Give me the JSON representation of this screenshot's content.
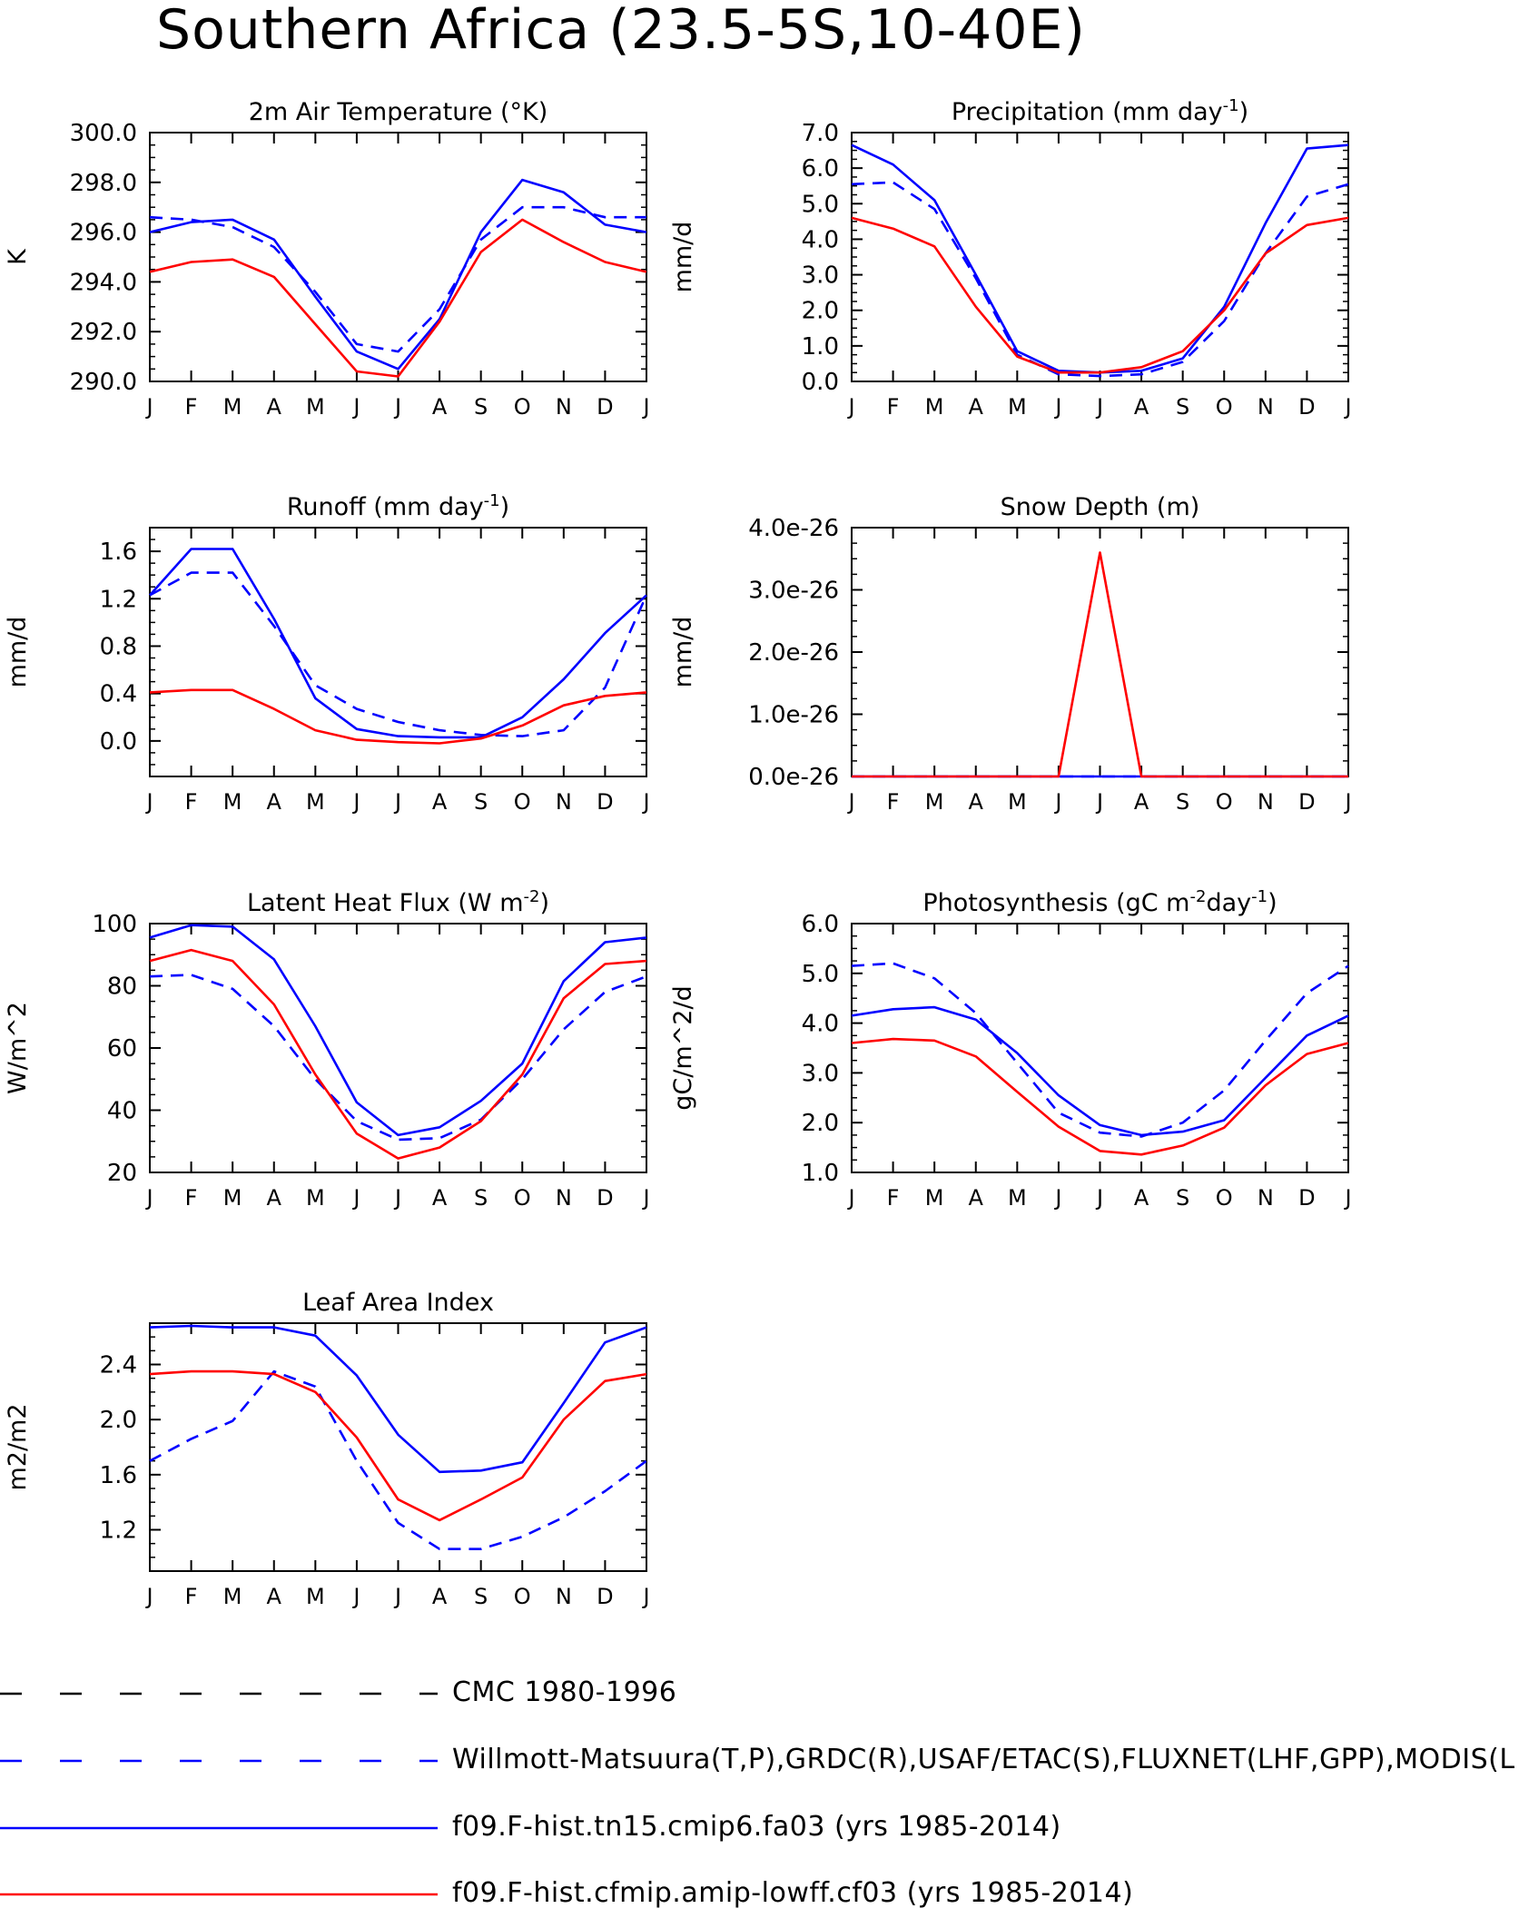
{
  "page": {
    "title": "Southern Africa (23.5-5S,10-40E)"
  },
  "colors": {
    "obs_cmc": "#000000",
    "obs_primary": "#0000ff",
    "model_fa03": "#0000ff",
    "model_cf03": "#ff0000"
  },
  "legend": [
    {
      "label": "CMC 1980-1996",
      "color": "#000000",
      "style": "dashed"
    },
    {
      "label": "Willmott-Matsuura(T,P),GRDC(R),USAF/ETAC(S),FLUXNET(LHF,GPP),MODIS(L",
      "color": "#0000ff",
      "style": "dashed"
    },
    {
      "label": "f09.F-hist.tn15.cmip6.fa03 (yrs 1985-2014)",
      "color": "#0000ff",
      "style": "solid"
    },
    {
      "label": "f09.F-hist.cfmip.amip-lowff.cf03 (yrs 1985-2014)",
      "color": "#ff0000",
      "style": "solid"
    }
  ],
  "chart_data": [
    {
      "type": "line",
      "title": "2m Air Temperature (°K)",
      "ylabel": "K",
      "categories": [
        "J",
        "F",
        "M",
        "A",
        "M",
        "J",
        "J",
        "A",
        "S",
        "O",
        "N",
        "D",
        "J"
      ],
      "ylim": [
        290,
        300
      ],
      "yticks": [
        "290.0",
        "292.0",
        "294.0",
        "296.0",
        "298.0",
        "300.0"
      ],
      "ytick_values": [
        290,
        292,
        294,
        296,
        298,
        300
      ],
      "series": [
        {
          "name": "Willmott-Matsuura(T,P),GRDC(R),USAF/ETAC(S),FLUXNET(LHF,GPP),MODIS(L",
          "color": "#0000ff",
          "style": "dashed",
          "values": [
            296.6,
            296.5,
            296.2,
            295.4,
            293.6,
            291.5,
            291.2,
            292.9,
            295.7,
            297.0,
            297.0,
            296.6,
            296.6
          ]
        },
        {
          "name": "f09.F-hist.tn15.cmip6.fa03 (yrs 1985-2014)",
          "color": "#0000ff",
          "style": "solid",
          "values": [
            296.0,
            296.4,
            296.5,
            295.7,
            293.4,
            291.2,
            290.5,
            292.5,
            296.0,
            298.1,
            297.6,
            296.3,
            296.0
          ]
        },
        {
          "name": "f09.F-hist.cfmip.amip-lowff.cf03 (yrs 1985-2014)",
          "color": "#ff0000",
          "style": "solid",
          "values": [
            294.4,
            294.8,
            294.9,
            294.2,
            292.3,
            290.4,
            290.2,
            292.4,
            295.2,
            296.5,
            295.6,
            294.8,
            294.4
          ]
        }
      ]
    },
    {
      "type": "line",
      "title": "Precipitation (mm day",
      "title_sup": "-1",
      "title_end": ")",
      "ylabel": "mm/d",
      "categories": [
        "J",
        "F",
        "M",
        "A",
        "M",
        "J",
        "J",
        "A",
        "S",
        "O",
        "N",
        "D",
        "J"
      ],
      "ylim": [
        0,
        7
      ],
      "yticks": [
        "0.0",
        "1.0",
        "2.0",
        "3.0",
        "4.0",
        "5.0",
        "6.0",
        "7.0"
      ],
      "ytick_values": [
        0,
        1,
        2,
        3,
        4,
        5,
        6,
        7
      ],
      "series": [
        {
          "name": "Willmott-Matsuura(T,P),GRDC(R),USAF/ETAC(S),FLUXNET(LHF,GPP),MODIS(L",
          "color": "#0000ff",
          "style": "dashed",
          "values": [
            5.55,
            5.6,
            4.85,
            2.9,
            0.75,
            0.2,
            0.15,
            0.2,
            0.55,
            1.7,
            3.6,
            5.2,
            5.55
          ]
        },
        {
          "name": "f09.F-hist.tn15.cmip6.fa03 (yrs 1985-2014)",
          "color": "#0000ff",
          "style": "solid",
          "values": [
            6.65,
            6.1,
            5.1,
            3.0,
            0.85,
            0.3,
            0.25,
            0.3,
            0.65,
            2.1,
            4.45,
            6.55,
            6.65
          ]
        },
        {
          "name": "f09.F-hist.cfmip.amip-lowff.cf03 (yrs 1985-2014)",
          "color": "#ff0000",
          "style": "solid",
          "values": [
            4.6,
            4.3,
            3.8,
            2.1,
            0.7,
            0.25,
            0.25,
            0.4,
            0.85,
            2.0,
            3.6,
            4.4,
            4.6
          ]
        }
      ]
    },
    {
      "type": "line",
      "title": "Runoff (mm day",
      "title_sup": "-1",
      "title_end": ")",
      "ylabel": "mm/d",
      "categories": [
        "J",
        "F",
        "M",
        "A",
        "M",
        "J",
        "J",
        "A",
        "S",
        "O",
        "N",
        "D",
        "J"
      ],
      "ylim": [
        -0.3,
        1.8
      ],
      "yticks": [
        "0.0",
        "0.4",
        "0.8",
        "1.2",
        "1.6"
      ],
      "ytick_values": [
        0,
        0.4,
        0.8,
        1.2,
        1.6
      ],
      "series": [
        {
          "name": "Willmott-Matsuura(T,P),GRDC(R),USAF/ETAC(S),FLUXNET(LHF,GPP),MODIS(L",
          "color": "#0000ff",
          "style": "dashed",
          "values": [
            1.23,
            1.42,
            1.42,
            0.97,
            0.47,
            0.27,
            0.16,
            0.09,
            0.05,
            0.04,
            0.09,
            0.45,
            1.23
          ]
        },
        {
          "name": "f09.F-hist.tn15.cmip6.fa03 (yrs 1985-2014)",
          "color": "#0000ff",
          "style": "solid",
          "values": [
            1.23,
            1.62,
            1.62,
            1.03,
            0.36,
            0.1,
            0.04,
            0.03,
            0.03,
            0.2,
            0.52,
            0.91,
            1.23
          ]
        },
        {
          "name": "f09.F-hist.cfmip.amip-lowff.cf03 (yrs 1985-2014)",
          "color": "#ff0000",
          "style": "solid",
          "values": [
            0.41,
            0.43,
            0.43,
            0.27,
            0.09,
            0.01,
            -0.01,
            -0.02,
            0.02,
            0.13,
            0.3,
            0.38,
            0.41
          ]
        }
      ]
    },
    {
      "type": "line",
      "title": "Snow Depth (m)",
      "ylabel": "mm/d",
      "categories": [
        "J",
        "F",
        "M",
        "A",
        "M",
        "J",
        "J",
        "A",
        "S",
        "O",
        "N",
        "D",
        "J"
      ],
      "ylim": [
        0,
        4e-26
      ],
      "yticks": [
        "0.0e-26",
        "1.0e-26",
        "2.0e-26",
        "3.0e-26",
        "4.0e-26"
      ],
      "ytick_values": [
        0,
        1e-26,
        2e-26,
        3e-26,
        4e-26
      ],
      "series": [
        {
          "name": "Willmott-Matsuura(T,P),GRDC(R),USAF/ETAC(S),FLUXNET(LHF,GPP),MODIS(L",
          "color": "#0000ff",
          "style": "dashed",
          "values": [
            0,
            0,
            0,
            0,
            0,
            0,
            0,
            0,
            0,
            0,
            0,
            0,
            0
          ]
        },
        {
          "name": "f09.F-hist.tn15.cmip6.fa03 (yrs 1985-2014)",
          "color": "#0000ff",
          "style": "solid",
          "values": [
            0,
            0,
            0,
            0,
            0,
            0,
            0,
            0,
            0,
            0,
            0,
            0,
            0
          ]
        },
        {
          "name": "f09.F-hist.cfmip.amip-lowff.cf03 (yrs 1985-2014)",
          "color": "#ff0000",
          "style": "solid",
          "values": [
            0,
            0,
            0,
            0,
            0,
            0,
            3.6e-26,
            0,
            0,
            0,
            0,
            0,
            0
          ]
        }
      ]
    },
    {
      "type": "line",
      "title": "Latent Heat Flux (W m",
      "title_sup": "-2",
      "title_end": ")",
      "ylabel": "W/m^2",
      "categories": [
        "J",
        "F",
        "M",
        "A",
        "M",
        "J",
        "J",
        "A",
        "S",
        "O",
        "N",
        "D",
        "J"
      ],
      "ylim": [
        20,
        100
      ],
      "yticks": [
        "20",
        "40",
        "60",
        "80",
        "100"
      ],
      "ytick_values": [
        20,
        40,
        60,
        80,
        100
      ],
      "series": [
        {
          "name": "Willmott-Matsuura(T,P),GRDC(R),USAF/ETAC(S),FLUXNET(LHF,GPP),MODIS(L",
          "color": "#0000ff",
          "style": "dashed",
          "values": [
            83,
            83.5,
            79,
            67,
            50,
            36.5,
            30.5,
            31,
            37,
            50,
            66,
            78,
            83
          ]
        },
        {
          "name": "f09.F-hist.tn15.cmip6.fa03 (yrs 1985-2014)",
          "color": "#0000ff",
          "style": "solid",
          "values": [
            95.5,
            99.5,
            99,
            88.5,
            67,
            42.5,
            32,
            34.5,
            43,
            55,
            81.5,
            94,
            95.5
          ]
        },
        {
          "name": "f09.F-hist.cfmip.amip-lowff.cf03 (yrs 1985-2014)",
          "color": "#ff0000",
          "style": "solid",
          "values": [
            88,
            91.5,
            88,
            74,
            51.5,
            32.5,
            24.5,
            28,
            36.5,
            51.5,
            76,
            87,
            88
          ]
        }
      ]
    },
    {
      "type": "line",
      "title": "Photosynthesis (gC m",
      "title_sup": "-2",
      "title_mid": "day",
      "title_sup2": "-1",
      "title_end": ")",
      "ylabel": "gC/m^2/d",
      "categories": [
        "J",
        "F",
        "M",
        "A",
        "M",
        "J",
        "J",
        "A",
        "S",
        "O",
        "N",
        "D",
        "J"
      ],
      "ylim": [
        1,
        6
      ],
      "yticks": [
        "1.0",
        "2.0",
        "3.0",
        "4.0",
        "5.0",
        "6.0"
      ],
      "ytick_values": [
        1,
        2,
        3,
        4,
        5,
        6
      ],
      "series": [
        {
          "name": "Willmott-Matsuura(T,P),GRDC(R),USAF/ETAC(S),FLUXNET(LHF,GPP),MODIS(L",
          "color": "#0000ff",
          "style": "dashed",
          "values": [
            5.15,
            5.2,
            4.9,
            4.2,
            3.2,
            2.2,
            1.8,
            1.72,
            2.0,
            2.65,
            3.65,
            4.6,
            5.15
          ]
        },
        {
          "name": "f09.F-hist.tn15.cmip6.fa03 (yrs 1985-2014)",
          "color": "#0000ff",
          "style": "solid",
          "values": [
            4.15,
            4.28,
            4.32,
            4.07,
            3.4,
            2.55,
            1.95,
            1.75,
            1.82,
            2.05,
            2.9,
            3.75,
            4.15
          ]
        },
        {
          "name": "f09.F-hist.cfmip.amip-lowff.cf03 (yrs 1985-2014)",
          "color": "#ff0000",
          "style": "solid",
          "values": [
            3.6,
            3.68,
            3.65,
            3.33,
            2.62,
            1.92,
            1.43,
            1.36,
            1.54,
            1.9,
            2.75,
            3.38,
            3.6
          ]
        }
      ]
    },
    {
      "type": "line",
      "title": "Leaf Area Index",
      "ylabel": "m2/m2",
      "categories": [
        "J",
        "F",
        "M",
        "A",
        "M",
        "J",
        "J",
        "A",
        "S",
        "O",
        "N",
        "D",
        "J"
      ],
      "ylim": [
        0.9,
        2.7
      ],
      "yticks": [
        "1.2",
        "1.6",
        "2.0",
        "2.4"
      ],
      "ytick_values": [
        1.2,
        1.6,
        2.0,
        2.4
      ],
      "series": [
        {
          "name": "Willmott-Matsuura(T,P),GRDC(R),USAF/ETAC(S),FLUXNET(LHF,GPP),MODIS(L",
          "color": "#0000ff",
          "style": "dashed",
          "values": [
            1.7,
            1.86,
            1.99,
            2.35,
            2.24,
            1.7,
            1.25,
            1.06,
            1.06,
            1.15,
            1.29,
            1.48,
            1.7
          ]
        },
        {
          "name": "f09.F-hist.tn15.cmip6.fa03 (yrs 1985-2014)",
          "color": "#0000ff",
          "style": "solid",
          "values": [
            2.67,
            2.68,
            2.67,
            2.67,
            2.61,
            2.32,
            1.89,
            1.62,
            1.63,
            1.69,
            2.12,
            2.56,
            2.67
          ]
        },
        {
          "name": "f09.F-hist.cfmip.amip-lowff.cf03 (yrs 1985-2014)",
          "color": "#ff0000",
          "style": "solid",
          "values": [
            2.33,
            2.35,
            2.35,
            2.33,
            2.2,
            1.87,
            1.42,
            1.27,
            1.42,
            1.58,
            2.0,
            2.28,
            2.33
          ]
        }
      ]
    }
  ]
}
